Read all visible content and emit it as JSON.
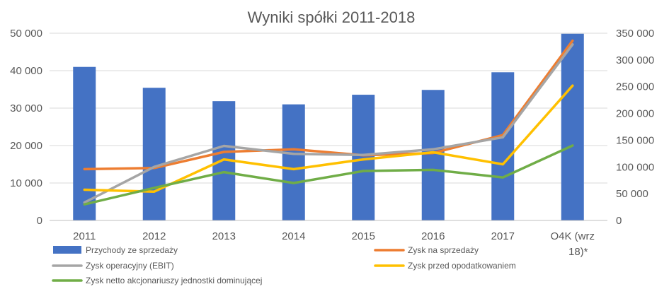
{
  "chart_data": {
    "type": "bar",
    "title": "Wyniki spółki 2011-2018",
    "categories": [
      "2011",
      "2012",
      "2013",
      "2014",
      "2015",
      "2016",
      "2017",
      "O4K (wrz 18)*"
    ],
    "y_left": {
      "ylim": [
        0,
        50000
      ],
      "ticks": [
        "0",
        "10 000",
        "20 000",
        "30 000",
        "40 000",
        "50 000"
      ],
      "tick_values": [
        0,
        10000,
        20000,
        30000,
        40000,
        50000
      ]
    },
    "y_right": {
      "ylim": [
        0,
        350000
      ],
      "ticks": [
        "0",
        "50 000",
        "100 000",
        "150 000",
        "200 000",
        "250 000",
        "300 000",
        "350 000"
      ],
      "tick_values": [
        0,
        50000,
        100000,
        150000,
        200000,
        250000,
        300000,
        350000
      ]
    },
    "grid": true,
    "legend_position": "bottom",
    "series": [
      {
        "name": "Przychody ze sprzedaży",
        "type": "bar",
        "axis": "right",
        "color": "#4472C4",
        "values": [
          287000,
          248000,
          223000,
          217000,
          235000,
          244000,
          277000,
          349000
        ]
      },
      {
        "name": "Zysk na sprzedaży",
        "type": "line",
        "axis": "left",
        "color": "#ED7D31",
        "values": [
          13700,
          14000,
          18300,
          19000,
          17400,
          18000,
          22800,
          48000
        ]
      },
      {
        "name": "Zysk operacyjny (EBIT)",
        "type": "line",
        "axis": "left",
        "color": "#A5A5A5",
        "values": [
          4800,
          14300,
          19900,
          17800,
          17500,
          19000,
          22200,
          47000
        ]
      },
      {
        "name": "Zysk przed opodatkowaniem",
        "type": "line",
        "axis": "left",
        "color": "#FFC000",
        "values": [
          8200,
          7700,
          16300,
          13700,
          16300,
          18200,
          15000,
          36000
        ]
      },
      {
        "name": "Zysk netto akcjonariuszy jednostki dominującej",
        "type": "line",
        "axis": "left",
        "color": "#70AD47",
        "values": [
          4300,
          8700,
          12900,
          10000,
          13200,
          13500,
          11500,
          20000
        ]
      }
    ]
  }
}
